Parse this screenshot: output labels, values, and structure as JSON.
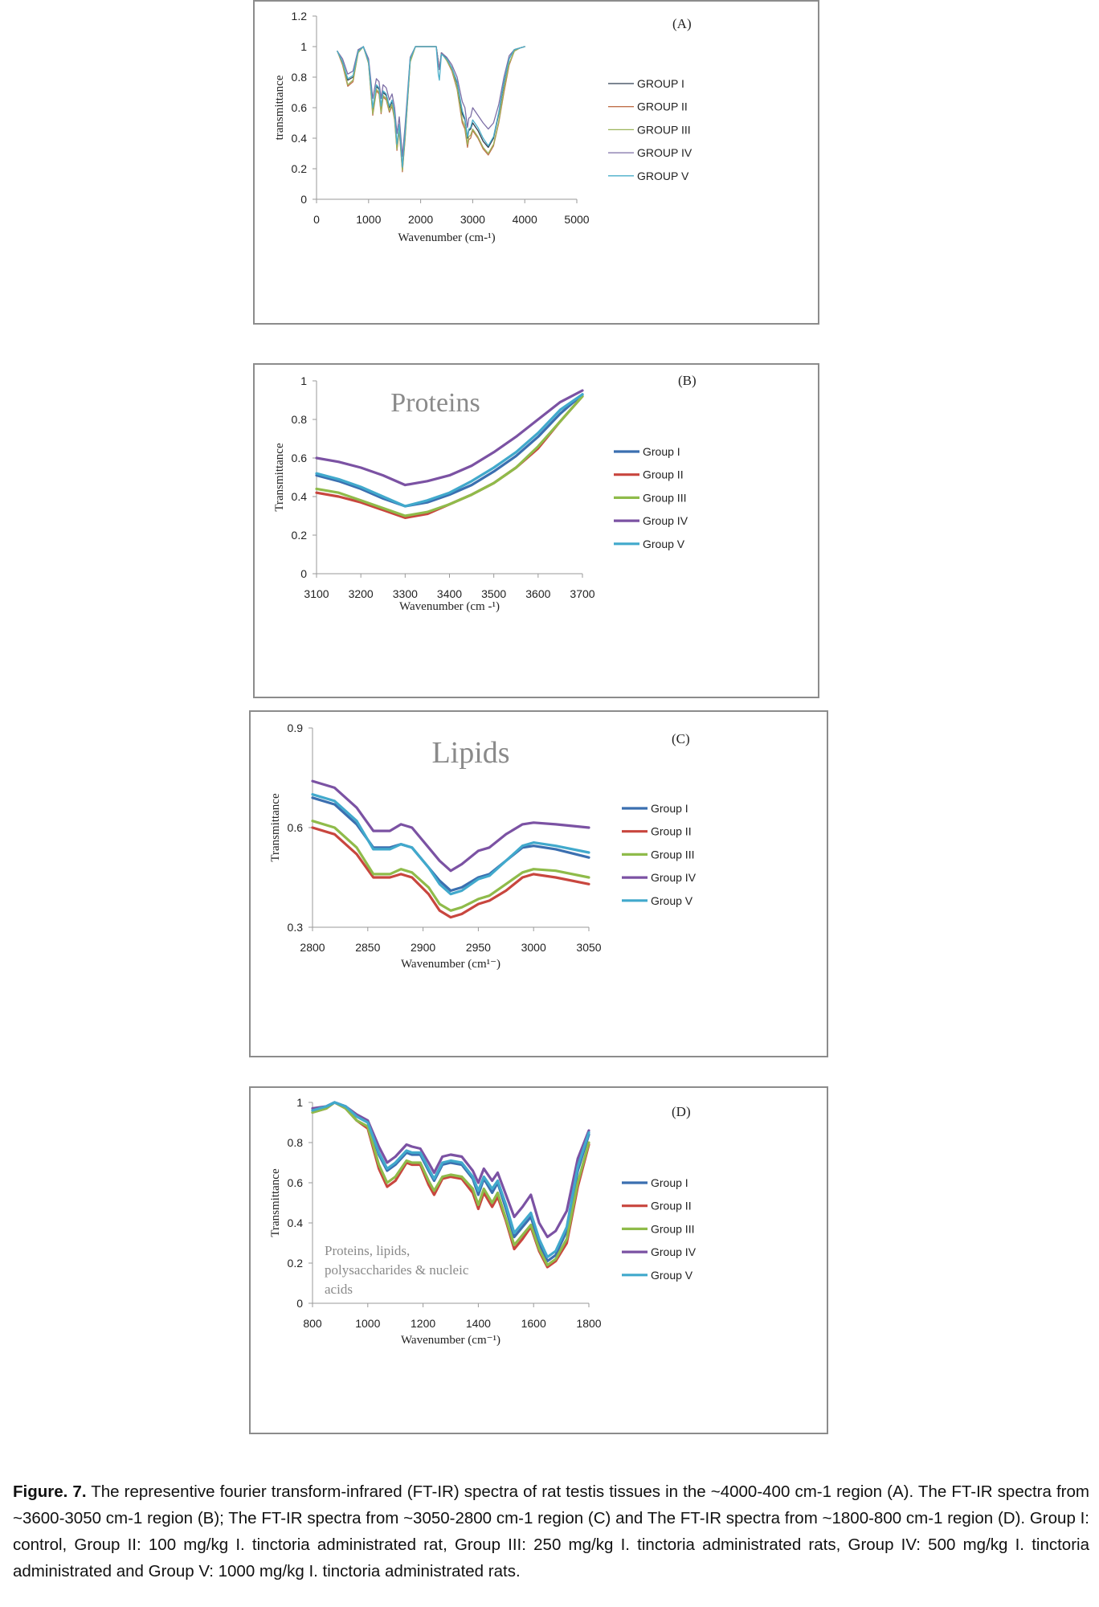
{
  "panels": [
    {
      "id": "A",
      "panel_label": "(A)",
      "watermark": "",
      "colors": [
        "#2f3e50",
        "#c0704a",
        "#9cb45a",
        "#7d6fa6",
        "#4aaec9"
      ],
      "chart_data": {
        "type": "line",
        "xlabel": "Wavenumber  (cm-¹)",
        "ylabel": "transmittance",
        "xlim": [
          0,
          5000
        ],
        "ylim": [
          0,
          1.2
        ],
        "xticks": [
          "0",
          "1000",
          "2000",
          "3000",
          "4000",
          "5000"
        ],
        "yticks": [
          "0",
          "0.2",
          "0.4",
          "0.6",
          "0.8",
          "1",
          "1.2"
        ],
        "grid": false,
        "legend": "right",
        "x": [
          400,
          500,
          600,
          700,
          800,
          900,
          1000,
          1080,
          1150,
          1200,
          1240,
          1280,
          1340,
          1400,
          1450,
          1500,
          1545,
          1590,
          1650,
          1700,
          1800,
          1900,
          2000,
          2100,
          2200,
          2300,
          2340,
          2360,
          2400,
          2500,
          2600,
          2700,
          2800,
          2850,
          2900,
          2925,
          2960,
          3000,
          3100,
          3200,
          3300,
          3400,
          3500,
          3600,
          3700,
          3800,
          3900,
          4000
        ],
        "series": [
          {
            "name": "GROUP I",
            "values": [
              0.97,
              0.9,
              0.78,
              0.8,
              0.97,
              1.0,
              0.9,
              0.58,
              0.74,
              0.72,
              0.6,
              0.7,
              0.68,
              0.6,
              0.64,
              0.55,
              0.35,
              0.48,
              0.2,
              0.42,
              0.92,
              1.0,
              1.0,
              1.0,
              1.0,
              1.0,
              0.9,
              0.85,
              0.96,
              0.92,
              0.86,
              0.76,
              0.56,
              0.52,
              0.4,
              0.45,
              0.46,
              0.5,
              0.45,
              0.38,
              0.34,
              0.4,
              0.56,
              0.76,
              0.92,
              0.98,
              0.99,
              1.0
            ]
          },
          {
            "name": "GROUP II",
            "values": [
              0.97,
              0.88,
              0.74,
              0.77,
              0.96,
              1.0,
              0.89,
              0.55,
              0.71,
              0.69,
              0.56,
              0.67,
              0.65,
              0.57,
              0.61,
              0.52,
              0.32,
              0.45,
              0.18,
              0.39,
              0.9,
              1.0,
              1.0,
              1.0,
              1.0,
              1.0,
              0.9,
              0.85,
              0.96,
              0.91,
              0.84,
              0.72,
              0.5,
              0.46,
              0.34,
              0.39,
              0.4,
              0.45,
              0.4,
              0.33,
              0.29,
              0.35,
              0.5,
              0.7,
              0.88,
              0.97,
              0.99,
              1.0
            ]
          },
          {
            "name": "GROUP III",
            "values": [
              0.97,
              0.89,
              0.75,
              0.78,
              0.96,
              1.0,
              0.89,
              0.56,
              0.72,
              0.7,
              0.57,
              0.68,
              0.66,
              0.58,
              0.62,
              0.53,
              0.33,
              0.46,
              0.19,
              0.4,
              0.9,
              1.0,
              1.0,
              1.0,
              1.0,
              1.0,
              0.9,
              0.85,
              0.96,
              0.91,
              0.85,
              0.73,
              0.52,
              0.48,
              0.36,
              0.41,
              0.42,
              0.46,
              0.41,
              0.34,
              0.3,
              0.36,
              0.51,
              0.72,
              0.89,
              0.97,
              0.99,
              1.0
            ]
          },
          {
            "name": "GROUP IV",
            "values": [
              0.97,
              0.92,
              0.82,
              0.84,
              0.98,
              1.0,
              0.92,
              0.66,
              0.79,
              0.77,
              0.66,
              0.75,
              0.73,
              0.65,
              0.69,
              0.6,
              0.43,
              0.54,
              0.28,
              0.48,
              0.93,
              1.0,
              1.0,
              1.0,
              1.0,
              1.0,
              0.9,
              0.85,
              0.96,
              0.93,
              0.88,
              0.8,
              0.64,
              0.6,
              0.47,
              0.53,
              0.54,
              0.6,
              0.55,
              0.5,
              0.46,
              0.5,
              0.62,
              0.8,
              0.94,
              0.98,
              0.99,
              1.0
            ]
          },
          {
            "name": "GROUP V",
            "values": [
              0.97,
              0.9,
              0.79,
              0.81,
              0.97,
              1.0,
              0.9,
              0.6,
              0.75,
              0.73,
              0.61,
              0.71,
              0.69,
              0.61,
              0.65,
              0.56,
              0.36,
              0.49,
              0.21,
              0.43,
              0.92,
              1.0,
              1.0,
              1.0,
              1.0,
              1.0,
              0.82,
              0.78,
              0.95,
              0.92,
              0.86,
              0.77,
              0.58,
              0.53,
              0.41,
              0.46,
              0.47,
              0.52,
              0.47,
              0.4,
              0.35,
              0.41,
              0.57,
              0.77,
              0.92,
              0.98,
              0.99,
              1.0
            ]
          }
        ]
      }
    },
    {
      "id": "B",
      "panel_label": "(B)",
      "watermark": "Proteins",
      "colors": [
        "#3b6fb0",
        "#c8463e",
        "#8fbb4a",
        "#7b52a3",
        "#41a9cc"
      ],
      "chart_data": {
        "type": "line",
        "xlabel": "Wavenumber  (cm -¹)",
        "ylabel": "Transmittance",
        "xlim": [
          3100,
          3700
        ],
        "ylim": [
          0,
          1
        ],
        "xticks": [
          "3100",
          "3200",
          "3300",
          "3400",
          "3500",
          "3600",
          "3700"
        ],
        "yticks": [
          "0",
          "0.2",
          "0.4",
          "0.6",
          "0.8",
          "1"
        ],
        "grid": false,
        "legend": "right",
        "x": [
          3100,
          3150,
          3200,
          3250,
          3300,
          3350,
          3400,
          3450,
          3500,
          3550,
          3600,
          3650,
          3700
        ],
        "series": [
          {
            "name": "Group I",
            "values": [
              0.51,
              0.48,
              0.44,
              0.39,
              0.35,
              0.37,
              0.41,
              0.46,
              0.53,
              0.61,
              0.71,
              0.83,
              0.93
            ]
          },
          {
            "name": "Group II",
            "values": [
              0.42,
              0.4,
              0.37,
              0.33,
              0.29,
              0.31,
              0.36,
              0.41,
              0.47,
              0.55,
              0.65,
              0.79,
              0.92
            ]
          },
          {
            "name": "Group III",
            "values": [
              0.44,
              0.42,
              0.38,
              0.34,
              0.3,
              0.32,
              0.36,
              0.41,
              0.47,
              0.55,
              0.66,
              0.79,
              0.92
            ]
          },
          {
            "name": "Group IV",
            "values": [
              0.6,
              0.58,
              0.55,
              0.51,
              0.46,
              0.48,
              0.51,
              0.56,
              0.63,
              0.71,
              0.8,
              0.89,
              0.95
            ]
          },
          {
            "name": "Group V",
            "values": [
              0.52,
              0.49,
              0.45,
              0.4,
              0.35,
              0.38,
              0.42,
              0.48,
              0.55,
              0.63,
              0.73,
              0.85,
              0.93
            ]
          }
        ]
      }
    },
    {
      "id": "C",
      "panel_label": "(C)",
      "watermark": "Lipids",
      "colors": [
        "#3b6fb0",
        "#c8463e",
        "#8fbb4a",
        "#7b52a3",
        "#41a9cc"
      ],
      "chart_data": {
        "type": "line",
        "xlabel": "Wavenumber  (cm¹⁻)",
        "ylabel": "Transmittance",
        "xlim": [
          2800,
          3050
        ],
        "ylim": [
          0.3,
          0.9
        ],
        "xticks": [
          "2800",
          "2850",
          "2900",
          "2950",
          "3000",
          "3050"
        ],
        "yticks": [
          "0.3",
          "0.6",
          "0.9"
        ],
        "grid": false,
        "legend": "right",
        "x": [
          2800,
          2820,
          2840,
          2855,
          2870,
          2880,
          2890,
          2905,
          2915,
          2925,
          2935,
          2950,
          2960,
          2975,
          2990,
          3000,
          3020,
          3050
        ],
        "series": [
          {
            "name": "Group I",
            "values": [
              0.69,
              0.67,
              0.61,
              0.54,
              0.54,
              0.55,
              0.54,
              0.48,
              0.44,
              0.41,
              0.42,
              0.45,
              0.46,
              0.5,
              0.54,
              0.545,
              0.535,
              0.51
            ]
          },
          {
            "name": "Group II",
            "values": [
              0.6,
              0.58,
              0.52,
              0.45,
              0.45,
              0.46,
              0.45,
              0.4,
              0.35,
              0.33,
              0.34,
              0.37,
              0.38,
              0.41,
              0.45,
              0.46,
              0.45,
              0.43
            ]
          },
          {
            "name": "Group III",
            "values": [
              0.62,
              0.6,
              0.54,
              0.46,
              0.46,
              0.475,
              0.465,
              0.42,
              0.37,
              0.35,
              0.36,
              0.385,
              0.395,
              0.43,
              0.465,
              0.475,
              0.47,
              0.45
            ]
          },
          {
            "name": "Group IV",
            "values": [
              0.74,
              0.72,
              0.66,
              0.59,
              0.59,
              0.61,
              0.6,
              0.54,
              0.5,
              0.47,
              0.49,
              0.53,
              0.54,
              0.58,
              0.61,
              0.615,
              0.61,
              0.6
            ]
          },
          {
            "name": "Group V",
            "values": [
              0.7,
              0.68,
              0.62,
              0.535,
              0.535,
              0.55,
              0.54,
              0.48,
              0.43,
              0.4,
              0.41,
              0.445,
              0.455,
              0.5,
              0.545,
              0.555,
              0.545,
              0.525
            ]
          }
        ]
      }
    },
    {
      "id": "D",
      "panel_label": "(D)",
      "watermark": "Proteins, lipids, polysaccharides & nucleic acids",
      "watermark_lines": [
        "Proteins, lipids,",
        "polysaccharides & nucleic",
        "acids"
      ],
      "colors": [
        "#3b6fb0",
        "#c8463e",
        "#8fbb4a",
        "#7b52a3",
        "#41a9cc"
      ],
      "chart_data": {
        "type": "line",
        "xlabel": "Wavenumber  (cm⁻¹)",
        "ylabel": "Transmittance",
        "xlim": [
          800,
          1800
        ],
        "ylim": [
          0,
          1
        ],
        "xticks": [
          "800",
          "1000",
          "1200",
          "1400",
          "1600",
          "1800"
        ],
        "yticks": [
          "0",
          "0.2",
          "0.4",
          "0.6",
          "0.8",
          "1"
        ],
        "grid": false,
        "legend": "right",
        "x": [
          800,
          850,
          880,
          920,
          960,
          1000,
          1040,
          1070,
          1100,
          1140,
          1160,
          1190,
          1220,
          1240,
          1270,
          1300,
          1340,
          1380,
          1400,
          1420,
          1450,
          1470,
          1500,
          1530,
          1560,
          1590,
          1620,
          1650,
          1680,
          1720,
          1760,
          1800
        ],
        "series": [
          {
            "name": "Group I",
            "values": [
              0.96,
              0.98,
              1.0,
              0.98,
              0.93,
              0.9,
              0.74,
              0.66,
              0.69,
              0.75,
              0.74,
              0.74,
              0.66,
              0.61,
              0.69,
              0.7,
              0.69,
              0.62,
              0.54,
              0.62,
              0.55,
              0.6,
              0.47,
              0.33,
              0.38,
              0.43,
              0.3,
              0.21,
              0.24,
              0.36,
              0.66,
              0.84
            ]
          },
          {
            "name": "Group II",
            "values": [
              0.95,
              0.97,
              1.0,
              0.97,
              0.91,
              0.87,
              0.67,
              0.58,
              0.61,
              0.7,
              0.69,
              0.69,
              0.59,
              0.54,
              0.62,
              0.63,
              0.62,
              0.55,
              0.47,
              0.55,
              0.48,
              0.53,
              0.41,
              0.27,
              0.32,
              0.38,
              0.26,
              0.18,
              0.21,
              0.3,
              0.58,
              0.79
            ]
          },
          {
            "name": "Group III",
            "values": [
              0.95,
              0.97,
              1.0,
              0.97,
              0.91,
              0.88,
              0.69,
              0.6,
              0.63,
              0.71,
              0.7,
              0.7,
              0.61,
              0.56,
              0.63,
              0.64,
              0.63,
              0.57,
              0.49,
              0.57,
              0.5,
              0.55,
              0.42,
              0.29,
              0.34,
              0.39,
              0.27,
              0.19,
              0.22,
              0.32,
              0.6,
              0.8
            ]
          },
          {
            "name": "Group IV",
            "values": [
              0.97,
              0.98,
              1.0,
              0.98,
              0.94,
              0.91,
              0.78,
              0.7,
              0.73,
              0.79,
              0.78,
              0.77,
              0.7,
              0.65,
              0.73,
              0.74,
              0.73,
              0.66,
              0.6,
              0.67,
              0.61,
              0.65,
              0.54,
              0.43,
              0.48,
              0.54,
              0.4,
              0.33,
              0.36,
              0.46,
              0.72,
              0.86
            ]
          },
          {
            "name": "Group V",
            "values": [
              0.96,
              0.98,
              1.0,
              0.98,
              0.93,
              0.9,
              0.75,
              0.67,
              0.7,
              0.76,
              0.75,
              0.75,
              0.67,
              0.62,
              0.7,
              0.71,
              0.7,
              0.63,
              0.56,
              0.63,
              0.57,
              0.61,
              0.49,
              0.35,
              0.4,
              0.45,
              0.32,
              0.23,
              0.26,
              0.38,
              0.68,
              0.85
            ]
          }
        ]
      }
    }
  ],
  "caption": {
    "lead": "Figure. 7.",
    "text": " The representive fourier transform-infrared (FT-IR) spectra of rat testis tissues in the ~4000-400 cm-1 region (A). The FT-IR spectra from ~3600-3050 cm-1 region (B); The FT-IR spectra from ~3050-2800 cm-1 region (C) and The FT-IR spectra from ~1800-800 cm-1 region (D). Group I: control, Group II:  100 mg/kg  I. tinctoria administrated rat,  Group III:  250 mg/kg  I. tinctoria administrated rats, Group IV: 500 mg/kg  I. tinctoria administrated and Group V: 1000 mg/kg  I. tinctoria administrated rats."
  }
}
